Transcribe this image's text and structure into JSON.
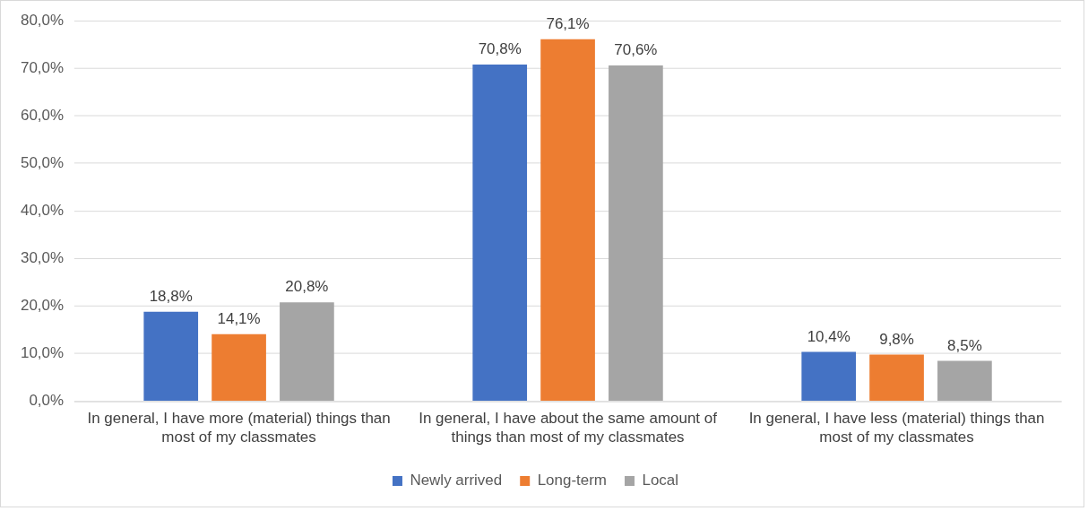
{
  "chart_data": {
    "type": "bar",
    "categories": [
      "In general, I have more (material) things than most of my classmates",
      "In general, I have about the same amount of things than most of my classmates",
      "In general, I have less (material) things than most of my classmates"
    ],
    "series": [
      {
        "name": "Newly arrived",
        "color": "#4472c4",
        "values": [
          18.8,
          70.8,
          10.4
        ],
        "value_labels": [
          "18,8%",
          "70,8%",
          "10,4%"
        ]
      },
      {
        "name": "Long-term",
        "color": "#ed7d31",
        "values": [
          14.1,
          76.1,
          9.8
        ],
        "value_labels": [
          "14,1%",
          "76,1%",
          "9,8%"
        ]
      },
      {
        "name": "Local",
        "color": "#a5a5a5",
        "values": [
          20.8,
          70.6,
          8.5
        ],
        "value_labels": [
          "20,8%",
          "70,6%",
          "8,5%"
        ]
      }
    ],
    "ylim": [
      0,
      80
    ],
    "yticks": [
      {
        "value": 0,
        "label": "0,0%"
      },
      {
        "value": 10,
        "label": "10,0%"
      },
      {
        "value": 20,
        "label": "20,0%"
      },
      {
        "value": 30,
        "label": "30,0%"
      },
      {
        "value": 40,
        "label": "40,0%"
      },
      {
        "value": 50,
        "label": "50,0%"
      },
      {
        "value": 60,
        "label": "60,0%"
      },
      {
        "value": 70,
        "label": "70,0%"
      },
      {
        "value": 80,
        "label": "80,0%"
      }
    ],
    "grid": "y",
    "legend": "bottom"
  }
}
